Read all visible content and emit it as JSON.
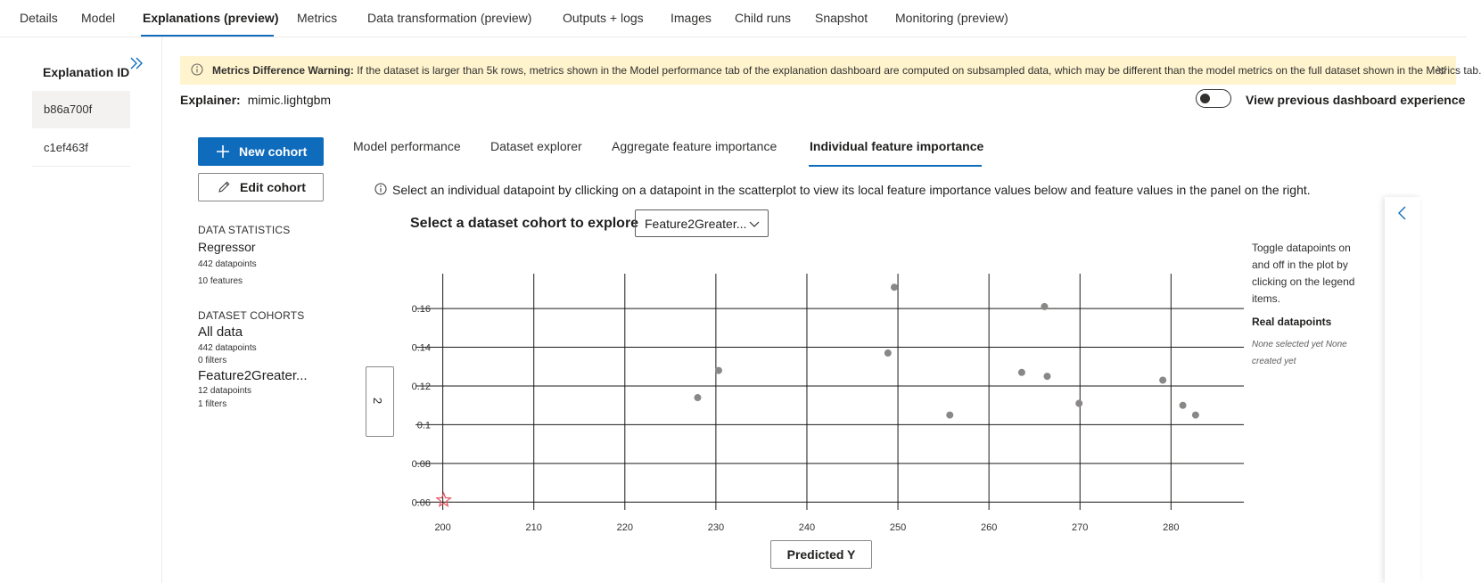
{
  "tabs": [
    {
      "label": "Details"
    },
    {
      "label": "Model"
    },
    {
      "label": "Explanations (preview)"
    },
    {
      "label": "Metrics"
    },
    {
      "label": "Data transformation (preview)"
    },
    {
      "label": "Outputs + logs"
    },
    {
      "label": "Images"
    },
    {
      "label": "Child runs"
    },
    {
      "label": "Snapshot"
    },
    {
      "label": "Monitoring (preview)"
    }
  ],
  "active_tab": "Explanations (preview)",
  "explanation_list": {
    "title": "Explanation ID",
    "items": [
      "b86a700f",
      "c1ef463f"
    ],
    "selected": "b86a700f"
  },
  "warning": {
    "bold": "Metrics Difference Warning:",
    "text": "If the dataset is larger than 5k rows, metrics shown in the Model performance tab of the explanation dashboard are computed on subsampled data, which may be different than the model metrics on the full dataset shown in the Metrics tab."
  },
  "explainer": {
    "label": "Explainer:",
    "value": "mimic.lightgbm"
  },
  "toggle": {
    "label": "View previous dashboard experience",
    "on": false
  },
  "buttons": {
    "new_cohort": "New cohort",
    "edit_cohort": "Edit cohort"
  },
  "data_statistics": {
    "heading": "DATA STATISTICS",
    "type": "Regressor",
    "datapoints": "442 datapoints",
    "features": "10 features"
  },
  "dataset_cohorts": {
    "heading": "DATASET COHORTS",
    "items": [
      {
        "name": "All data",
        "datapoints": "442 datapoints",
        "filters": "0 filters"
      },
      {
        "name": "Feature2Greater...",
        "datapoints": "12 datapoints",
        "filters": "1 filters"
      }
    ]
  },
  "dashboard_tabs": [
    {
      "label": "Model performance"
    },
    {
      "label": "Dataset explorer"
    },
    {
      "label": "Aggregate feature importance"
    },
    {
      "label": "Individual feature importance"
    }
  ],
  "active_dashboard_tab": "Individual feature importance",
  "instruction": "Select an individual datapoint by cllicking on a datapoint in the scatterplot to view its local feature importance values below and feature values in the panel on the right.",
  "cohort_selector": {
    "label": "Select a dataset cohort to explore",
    "value": "Feature2Greater..."
  },
  "y_axis_selector": "2",
  "x_axis_selector": "Predicted Y",
  "legend": {
    "note": "Toggle datapoints on and off in the plot by clicking on the legend items.",
    "title": "Real datapoints",
    "empty": "None selected yet  None created yet"
  },
  "icons": {
    "expand": "double-chevron-right-icon",
    "info": "info-icon",
    "collapse_banner": "chevron-down-icon",
    "add": "plus-icon",
    "edit": "pencil-icon",
    "dropdown": "chevron-down-icon",
    "panel": "chevron-left-icon",
    "marker": "star-icon"
  },
  "colors": {
    "accent": "#0f6cbd",
    "warning_bg": "#fff4ce",
    "point": "#8a8886",
    "star": "#e3505a"
  },
  "chart_data": {
    "type": "scatter",
    "xlabel": "Predicted Y",
    "ylabel": "2",
    "xlim": [
      197,
      288
    ],
    "ylim": [
      0.056,
      0.178
    ],
    "x_ticks": [
      "200",
      "210",
      "220",
      "230",
      "240",
      "250",
      "260",
      "270",
      "280"
    ],
    "y_ticks": [
      "0.06",
      "0.08",
      "0.1",
      "0.12",
      "0.14",
      "0.16"
    ],
    "grid": true,
    "series": [
      {
        "name": "Real datapoints",
        "x": [
          228.0,
          230.3,
          248.9,
          249.6,
          255.7,
          263.6,
          266.1,
          266.4,
          269.9,
          279.1,
          281.3,
          282.7
        ],
        "y": [
          0.114,
          0.128,
          0.137,
          0.171,
          0.105,
          0.127,
          0.161,
          0.125,
          0.111,
          0.123,
          0.11,
          0.105
        ]
      }
    ],
    "highlight": {
      "x": 200.1,
      "y": 0.061,
      "marker": "star"
    }
  }
}
